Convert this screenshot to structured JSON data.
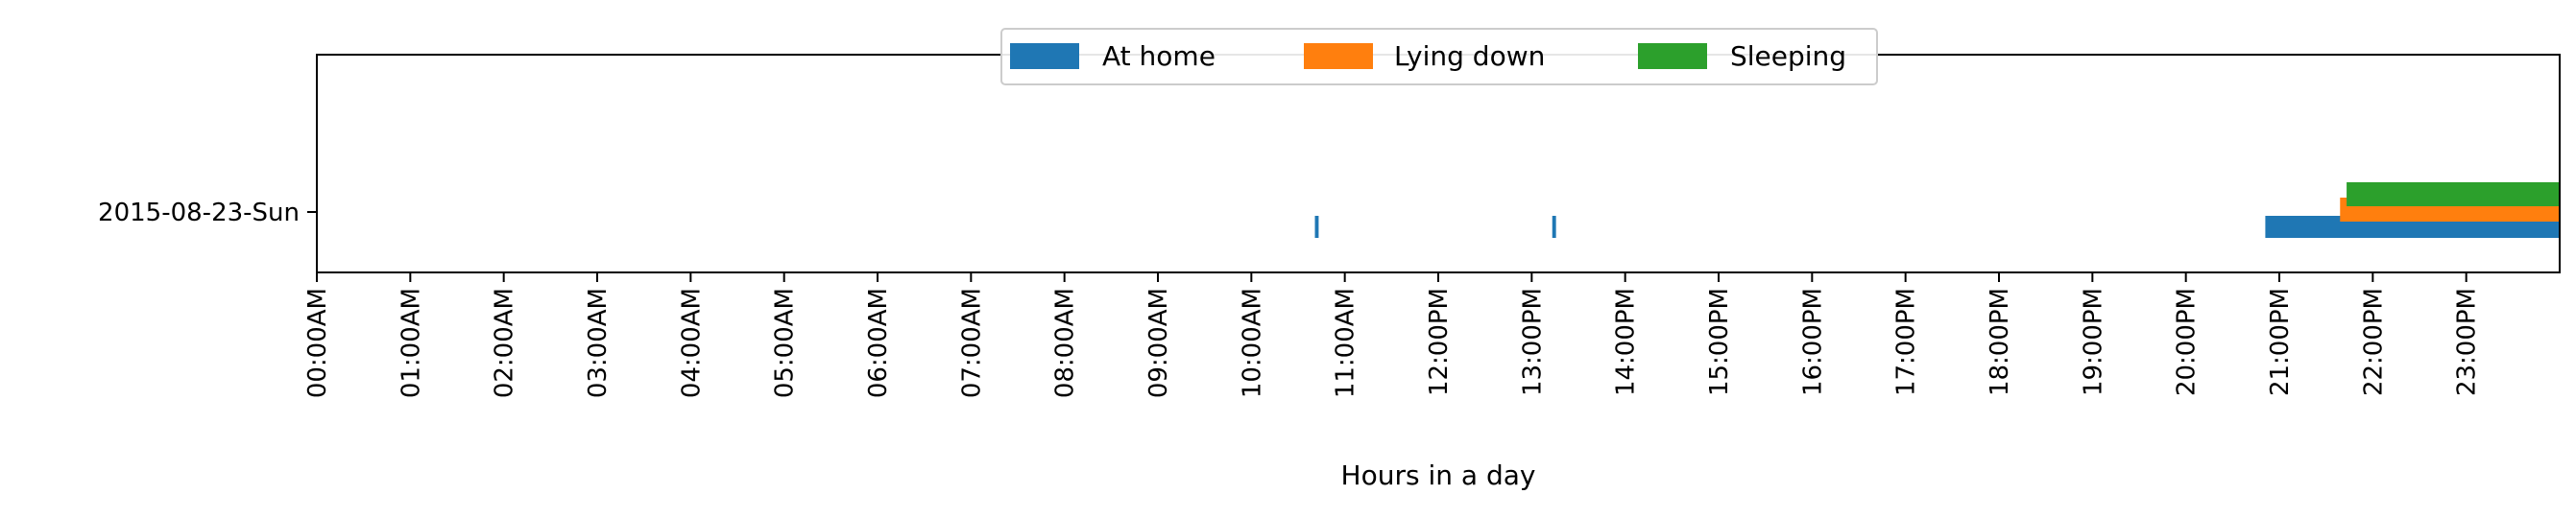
{
  "chart_data": {
    "type": "timeline",
    "title": "",
    "xlabel": "Hours in a day",
    "ylabel": "",
    "xlim": [
      0,
      24
    ],
    "y_categories": [
      "2015-08-23-Sun"
    ],
    "x_tick_labels": [
      "00:00AM",
      "01:00AM",
      "02:00AM",
      "03:00AM",
      "04:00AM",
      "05:00AM",
      "06:00AM",
      "07:00AM",
      "08:00AM",
      "09:00AM",
      "10:00AM",
      "11:00AM",
      "12:00PM",
      "13:00PM",
      "14:00PM",
      "15:00PM",
      "16:00PM",
      "17:00PM",
      "18:00PM",
      "19:00PM",
      "20:00PM",
      "21:00PM",
      "22:00PM",
      "23:00PM"
    ],
    "legend_placement": "top-center",
    "grid": false,
    "series": [
      {
        "name": "At home",
        "color": "#1f77b4",
        "intervals": [
          [
            10.68,
            10.72
          ],
          [
            13.22,
            13.26
          ],
          [
            20.85,
            24.0
          ]
        ]
      },
      {
        "name": "Lying down",
        "color": "#ff7f0e",
        "intervals": [
          [
            21.65,
            24.0
          ]
        ]
      },
      {
        "name": "Sleeping",
        "color": "#2ca02c",
        "intervals": [
          [
            21.72,
            24.0
          ]
        ]
      }
    ]
  }
}
